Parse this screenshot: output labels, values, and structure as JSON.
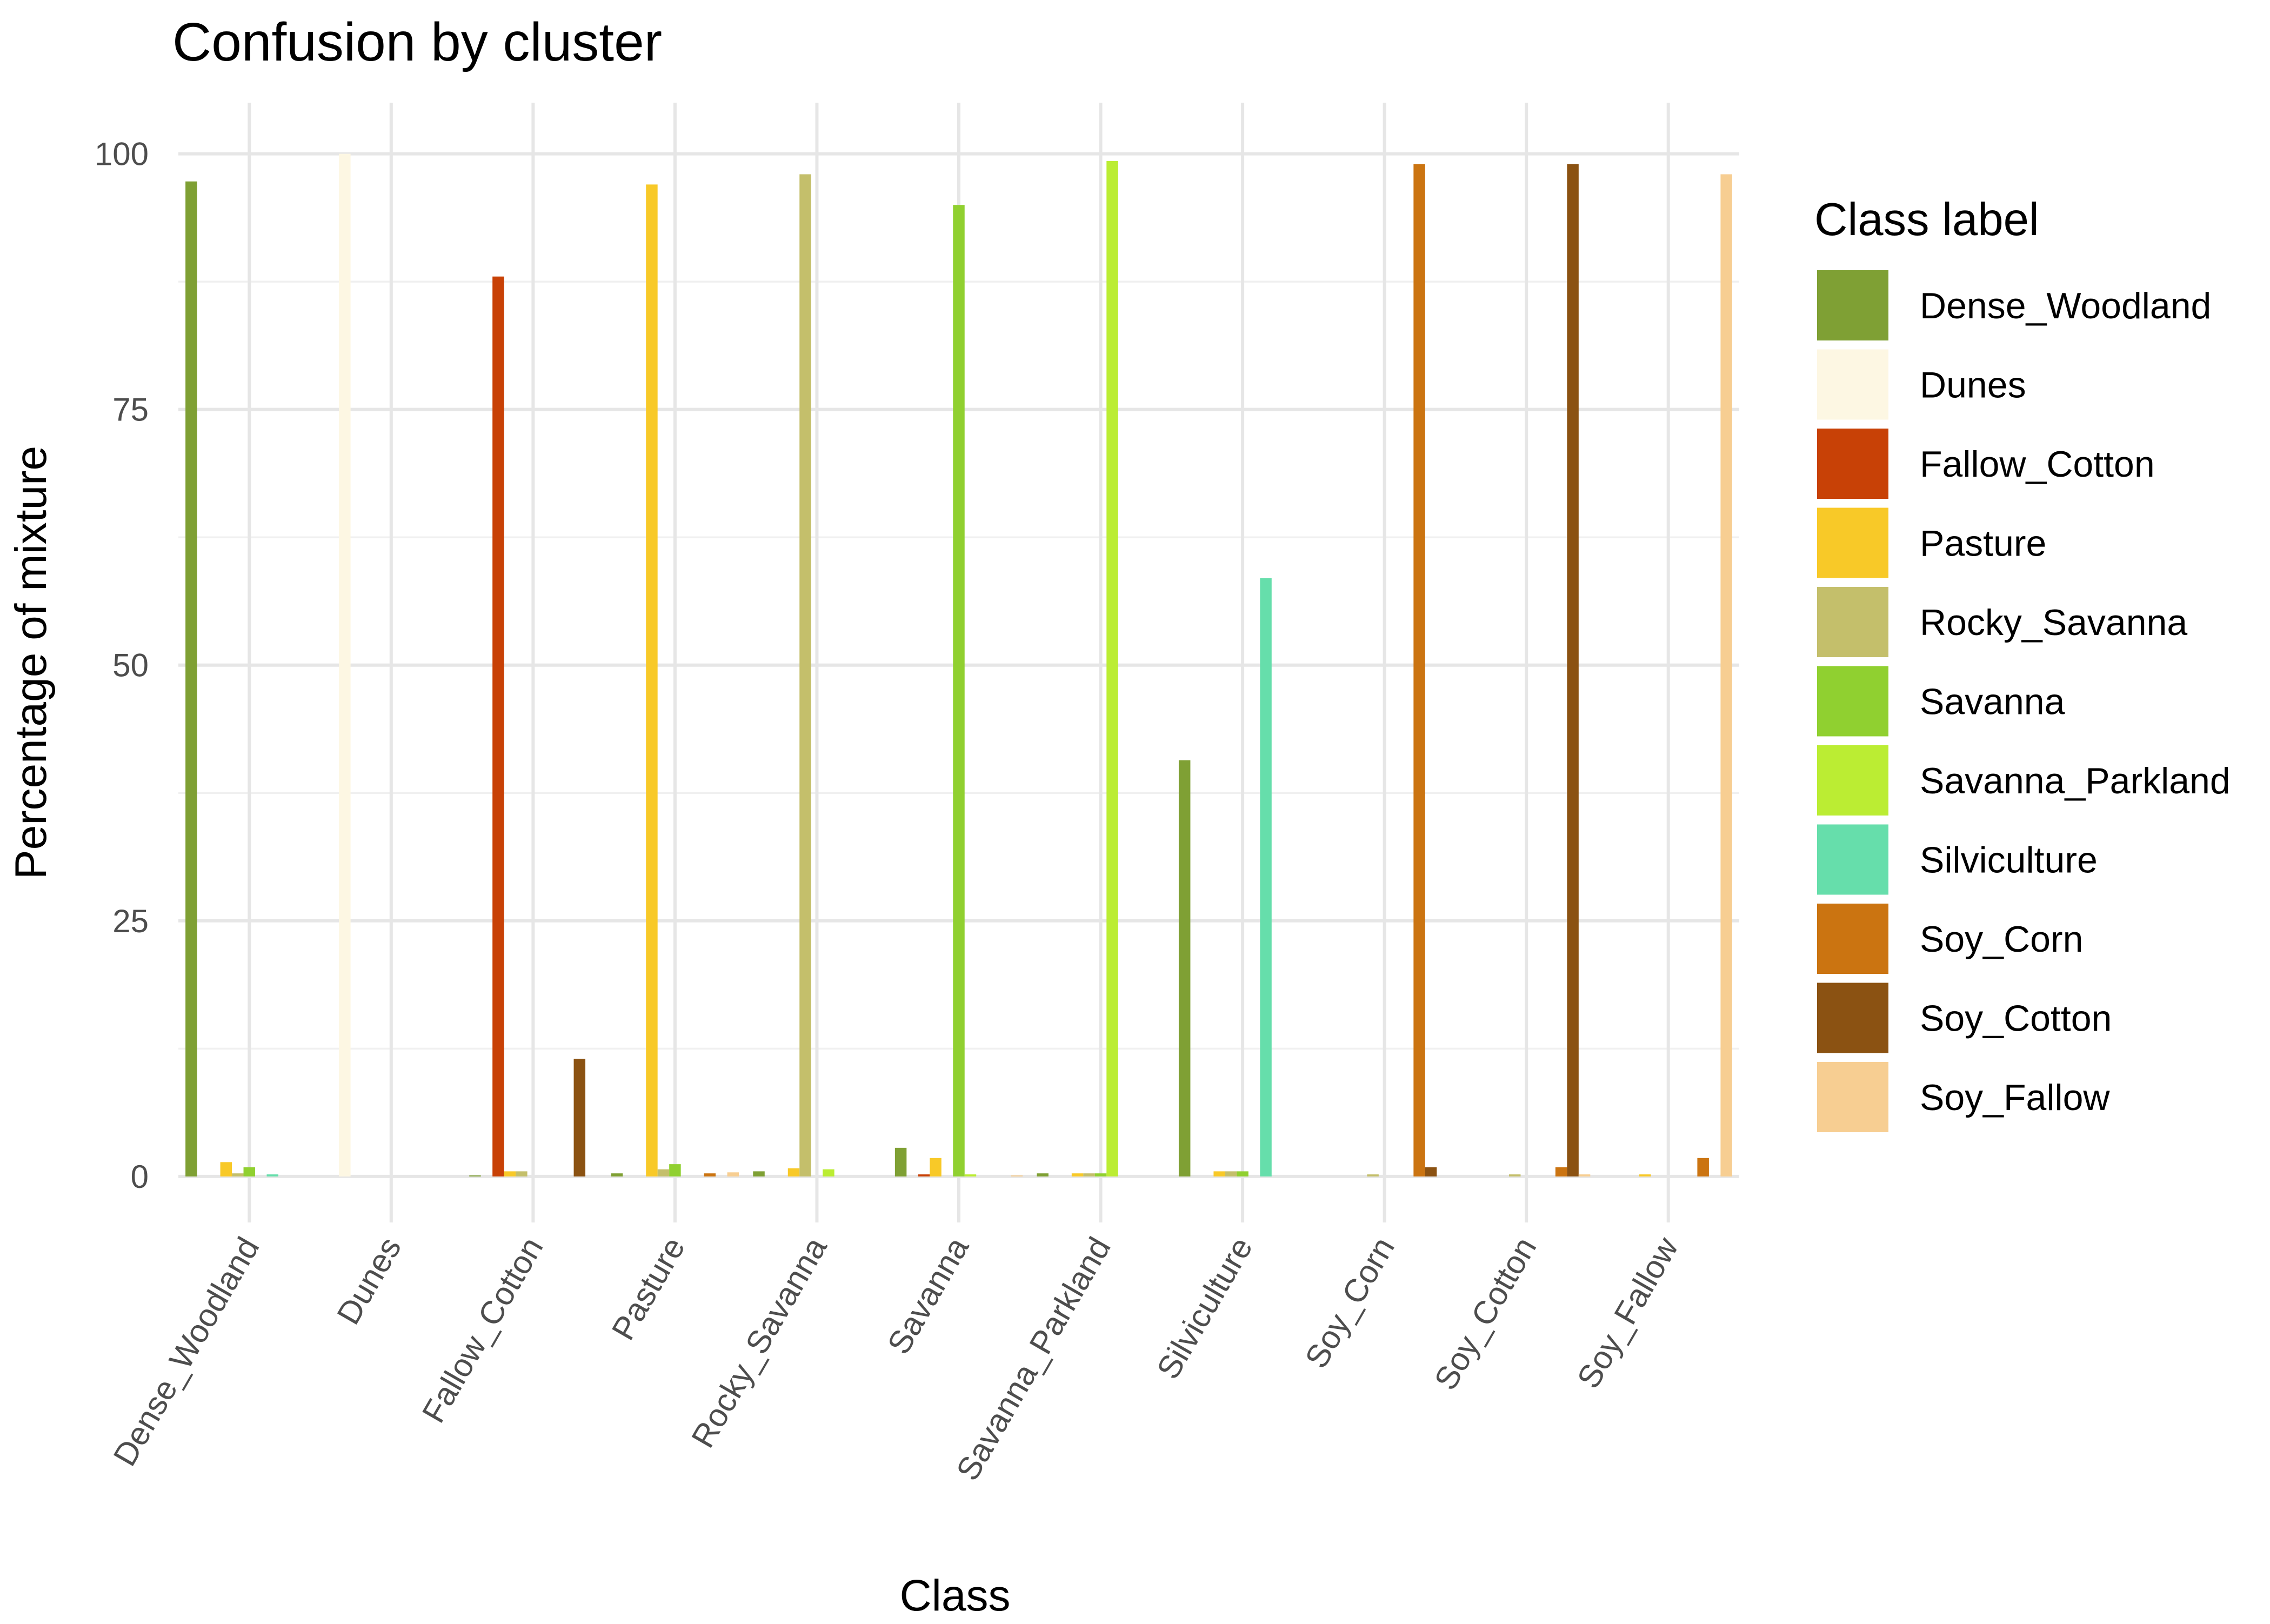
{
  "chart_data": {
    "type": "bar",
    "title": "Confusion by cluster",
    "xlabel": "Class",
    "ylabel": "Percentage of mixture",
    "ylim": [
      -4.5,
      105
    ],
    "yticks": [
      0,
      25,
      50,
      75,
      100
    ],
    "grid": true,
    "legend_title": "Class label",
    "legend_position": "right",
    "categories": [
      "Dense_Woodland",
      "Dunes",
      "Fallow_Cotton",
      "Pasture",
      "Rocky_Savanna",
      "Savanna",
      "Savanna_Parkland",
      "Silviculture",
      "Soy_Corn",
      "Soy_Cotton",
      "Soy_Fallow"
    ],
    "series": [
      {
        "name": "Dense_Woodland",
        "color": "#7fa034",
        "values": [
          97.3,
          0,
          0.1,
          0.3,
          0.5,
          2.8,
          0.3,
          40.7,
          0,
          0,
          0
        ]
      },
      {
        "name": "Dunes",
        "color": "#fdf7e3",
        "values": [
          0,
          100,
          0,
          0,
          0,
          0,
          0,
          0,
          0,
          0,
          0
        ]
      },
      {
        "name": "Fallow_Cotton",
        "color": "#c84106",
        "values": [
          0,
          0,
          88,
          0,
          0,
          0.2,
          0,
          0,
          0,
          0,
          0
        ]
      },
      {
        "name": "Pasture",
        "color": "#f8c928",
        "values": [
          1.4,
          0,
          0.5,
          97,
          0.8,
          1.8,
          0.3,
          0.5,
          0,
          0,
          0.2
        ]
      },
      {
        "name": "Rocky_Savanna",
        "color": "#c4bf6b",
        "values": [
          0.3,
          0,
          0.5,
          0.7,
          98,
          0,
          0.3,
          0.5,
          0.2,
          0.2,
          0
        ]
      },
      {
        "name": "Savanna",
        "color": "#90d030",
        "values": [
          0.9,
          0,
          0,
          1.2,
          0,
          95,
          0.3,
          0.5,
          0,
          0,
          0
        ]
      },
      {
        "name": "Savanna_Parkland",
        "color": "#bbed33",
        "values": [
          0,
          0,
          0,
          0,
          0.7,
          0.2,
          99.3,
          0,
          0,
          0,
          0
        ]
      },
      {
        "name": "Silviculture",
        "color": "#66deab",
        "values": [
          0.2,
          0,
          0,
          0,
          0,
          0,
          0,
          58.5,
          0,
          0,
          0
        ]
      },
      {
        "name": "Soy_Corn",
        "color": "#cb7411",
        "values": [
          0,
          0,
          0,
          0.3,
          0,
          0,
          0,
          0,
          99,
          0.9,
          1.8
        ]
      },
      {
        "name": "Soy_Cotton",
        "color": "#8b5212",
        "values": [
          0,
          0,
          11.5,
          0,
          0,
          0,
          0,
          0,
          0.9,
          99,
          0
        ]
      },
      {
        "name": "Soy_Fallow",
        "color": "#f7ce92",
        "values": [
          0,
          0,
          0,
          0.4,
          0,
          0.1,
          0,
          0,
          0,
          0.2,
          98
        ]
      }
    ]
  }
}
